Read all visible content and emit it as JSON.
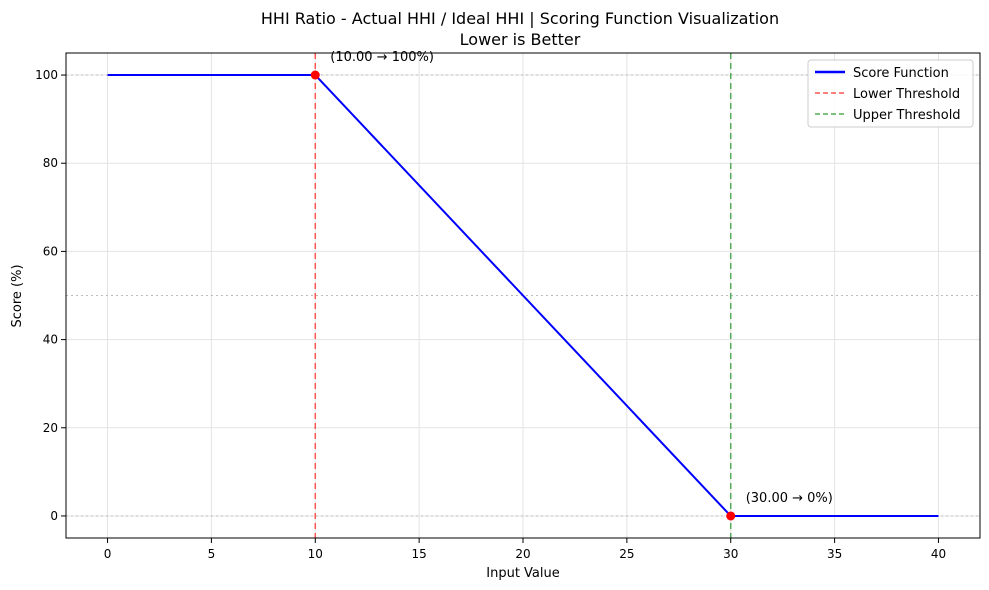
{
  "chart_data": {
    "type": "line",
    "title": "HHI Ratio - Actual HHI / Ideal HHI | Scoring Function Visualization",
    "subtitle": "Lower is Better",
    "xlabel": "Input Value",
    "ylabel": "Score (%)",
    "xlim": [
      -2,
      42
    ],
    "ylim": [
      -5,
      105
    ],
    "xticks": [
      "0",
      "5",
      "10",
      "15",
      "20",
      "25",
      "30",
      "35",
      "40"
    ],
    "yticks": [
      "0",
      "20",
      "40",
      "60",
      "80",
      "100"
    ],
    "grid": true,
    "legend_position": "top-right",
    "series": [
      {
        "name": "Score Function",
        "color": "#0000ff",
        "x": [
          0,
          10,
          30,
          40
        ],
        "y": [
          100,
          100,
          0,
          0
        ]
      }
    ],
    "vlines": [
      {
        "name": "Lower Threshold",
        "x": 10,
        "color": "#ff5555"
      },
      {
        "name": "Upper Threshold",
        "x": 30,
        "color": "#55aa55"
      }
    ],
    "hlines": [
      {
        "y": 0,
        "color": "#bbbbbb"
      },
      {
        "y": 50,
        "color": "#bbbbbb"
      },
      {
        "y": 100,
        "color": "#bbbbbb"
      }
    ],
    "points": [
      {
        "x": 10,
        "y": 100,
        "color": "#ff0000"
      },
      {
        "x": 30,
        "y": 0,
        "color": "#ff0000"
      }
    ],
    "annotations": [
      {
        "x": 10,
        "y": 100,
        "text": "(10.00 → 100%)"
      },
      {
        "x": 30,
        "y": 0,
        "text": "(30.00 → 0%)"
      }
    ]
  }
}
